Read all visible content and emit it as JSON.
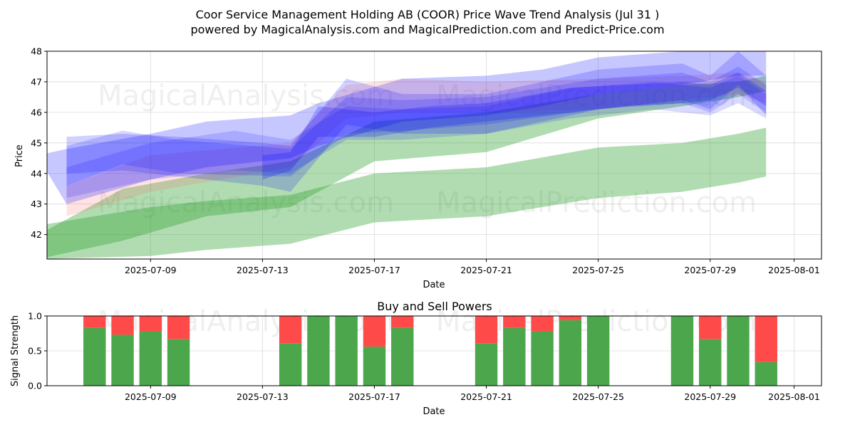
{
  "chart_data": [
    {
      "type": "area",
      "title": "Coor Service Management Holding AB (COOR) Price Wave Trend Analysis (Jul 31 )",
      "subtitle": "powered by MagicalAnalysis.com and MagicalPrediction.com and Predict-Price.com",
      "xlabel": "Date",
      "ylabel": "Price",
      "xlim": [
        "2025-07-05",
        "2025-08-01"
      ],
      "ylim": [
        41.2,
        48
      ],
      "x_ticks": [
        "2025-07-09",
        "2025-07-13",
        "2025-07-17",
        "2025-07-21",
        "2025-07-25",
        "2025-07-29",
        "2025-08-01"
      ],
      "y_ticks": [
        42,
        43,
        44,
        45,
        46,
        47,
        48
      ],
      "grid": true,
      "series": [
        {
          "name": "green-band-low",
          "color": "#2ca02c",
          "opacity": 0.37,
          "x": [
            "2025-07-05",
            "2025-07-09",
            "2025-07-11",
            "2025-07-14",
            "2025-07-17",
            "2025-07-19",
            "2025-07-21",
            "2025-07-25",
            "2025-07-28",
            "2025-07-30",
            "2025-07-31"
          ],
          "upper": [
            42.3,
            42.9,
            43.1,
            43.3,
            44.0,
            44.1,
            44.2,
            44.85,
            45.0,
            45.3,
            45.5
          ],
          "lower": [
            41.2,
            41.3,
            41.5,
            41.7,
            42.4,
            42.5,
            42.6,
            43.2,
            43.4,
            43.7,
            43.9
          ]
        },
        {
          "name": "green-band-high",
          "color": "#2ca02c",
          "opacity": 0.37,
          "x": [
            "2025-07-05",
            "2025-07-08",
            "2025-07-11",
            "2025-07-14",
            "2025-07-17",
            "2025-07-21",
            "2025-07-25",
            "2025-07-28",
            "2025-07-30",
            "2025-07-31"
          ],
          "upper": [
            42.0,
            43.5,
            44.0,
            44.4,
            45.7,
            46.0,
            46.6,
            46.9,
            47.0,
            47.2
          ],
          "lower": [
            41.2,
            41.8,
            42.6,
            42.9,
            44.4,
            44.7,
            45.8,
            46.2,
            46.5,
            46.7
          ]
        },
        {
          "name": "red-wave",
          "color": "#ff6666",
          "opacity": 0.18,
          "x": [
            "2025-07-06",
            "2025-07-09",
            "2025-07-14",
            "2025-07-16",
            "2025-07-18",
            "2025-07-21",
            "2025-07-25",
            "2025-07-28",
            "2025-07-30",
            "2025-07-31"
          ],
          "upper": [
            43.6,
            44.6,
            45.0,
            46.9,
            47.1,
            47.0,
            47.1,
            47.2,
            47.3,
            47.0
          ],
          "lower": [
            42.6,
            43.4,
            44.2,
            45.8,
            46.0,
            46.0,
            46.1,
            46.4,
            46.6,
            46.3
          ]
        },
        {
          "name": "blue-wave-1",
          "color": "#0000ff",
          "opacity": 0.22,
          "x": [
            "2025-07-05",
            "2025-07-06",
            "2025-07-09",
            "2025-07-11",
            "2025-07-14",
            "2025-07-15",
            "2025-07-18",
            "2025-07-21",
            "2025-07-23",
            "2025-07-25",
            "2025-07-28",
            "2025-07-30",
            "2025-07-31"
          ],
          "upper": [
            44.6,
            44.8,
            45.3,
            45.7,
            45.9,
            46.3,
            47.1,
            47.2,
            47.4,
            47.8,
            48.0,
            48.1,
            48.1
          ],
          "lower": [
            44.5,
            43.0,
            43.8,
            44.2,
            44.5,
            44.9,
            45.7,
            45.9,
            46.2,
            46.6,
            46.9,
            47.2,
            47.2
          ]
        },
        {
          "name": "blue-wave-2",
          "color": "#0000ff",
          "opacity": 0.18,
          "x": [
            "2025-07-06",
            "2025-07-08",
            "2025-07-10",
            "2025-07-13",
            "2025-07-14",
            "2025-07-16",
            "2025-07-18",
            "2025-07-21",
            "2025-07-25",
            "2025-07-28",
            "2025-07-29",
            "2025-07-30",
            "2025-07-31"
          ],
          "upper": [
            45.2,
            45.3,
            45.2,
            45.0,
            44.9,
            47.1,
            46.6,
            46.6,
            47.4,
            47.6,
            47.2,
            48.0,
            47.2
          ],
          "lower": [
            44.0,
            44.1,
            43.9,
            43.6,
            43.4,
            45.6,
            45.3,
            45.3,
            46.1,
            46.4,
            46.1,
            46.9,
            45.9
          ]
        },
        {
          "name": "blue-wave-3",
          "color": "#0000ff",
          "opacity": 0.16,
          "x": [
            "2025-07-06",
            "2025-07-08",
            "2025-07-10",
            "2025-07-14",
            "2025-07-16",
            "2025-07-18",
            "2025-07-21",
            "2025-07-25",
            "2025-07-28",
            "2025-07-29",
            "2025-07-30",
            "2025-07-31"
          ],
          "upper": [
            44.9,
            45.4,
            45.1,
            44.8,
            46.5,
            46.4,
            46.5,
            47.1,
            47.3,
            47.0,
            47.5,
            46.9
          ],
          "lower": [
            43.6,
            44.3,
            44.0,
            43.9,
            45.3,
            45.4,
            45.6,
            46.1,
            46.3,
            46.0,
            46.6,
            46.0
          ]
        },
        {
          "name": "blue-wave-4",
          "color": "#0000ff",
          "opacity": 0.15,
          "x": [
            "2025-07-06",
            "2025-07-09",
            "2025-07-12",
            "2025-07-14",
            "2025-07-16",
            "2025-07-18",
            "2025-07-21",
            "2025-07-24",
            "2025-07-27",
            "2025-07-29",
            "2025-07-30",
            "2025-07-31"
          ],
          "upper": [
            44.2,
            45.0,
            45.4,
            45.1,
            46.2,
            46.1,
            46.2,
            46.8,
            47.0,
            46.8,
            47.2,
            46.6
          ],
          "lower": [
            43.2,
            43.8,
            44.1,
            44.0,
            45.1,
            45.1,
            45.3,
            45.8,
            46.1,
            45.9,
            46.3,
            45.8
          ]
        },
        {
          "name": "blue-wave-5",
          "color": "#0000ff",
          "opacity": 0.22,
          "x": [
            "2025-07-13",
            "2025-07-14",
            "2025-07-15",
            "2025-07-17",
            "2025-07-19",
            "2025-07-21",
            "2025-07-24",
            "2025-07-26",
            "2025-07-28",
            "2025-07-29",
            "2025-07-30",
            "2025-07-31"
          ],
          "upper": [
            44.6,
            44.7,
            46.2,
            46.0,
            46.2,
            46.3,
            46.8,
            46.9,
            47.0,
            46.9,
            47.3,
            46.7
          ],
          "lower": [
            43.8,
            44.1,
            45.2,
            45.2,
            45.5,
            45.7,
            46.0,
            46.2,
            46.3,
            46.4,
            46.8,
            46.2
          ]
        }
      ]
    },
    {
      "type": "bar",
      "stacked": true,
      "title": "Buy and Sell Powers",
      "xlabel": "Date",
      "ylabel": "Signal Strength",
      "xlim": [
        "2025-07-05",
        "2025-08-01"
      ],
      "ylim": [
        0,
        1
      ],
      "x_ticks": [
        "2025-07-09",
        "2025-07-13",
        "2025-07-17",
        "2025-07-21",
        "2025-07-25",
        "2025-07-29",
        "2025-08-01"
      ],
      "y_ticks": [
        "0.0",
        "0.5",
        "1.0"
      ],
      "grid": true,
      "categories": [
        "2025-07-07",
        "2025-07-08",
        "2025-07-09",
        "2025-07-10",
        "2025-07-14",
        "2025-07-15",
        "2025-07-16",
        "2025-07-17",
        "2025-07-18",
        "2025-07-21",
        "2025-07-22",
        "2025-07-23",
        "2025-07-24",
        "2025-07-25",
        "2025-07-28",
        "2025-07-29",
        "2025-07-30",
        "2025-07-31"
      ],
      "series": [
        {
          "name": "Buy",
          "color": "#4ca64c",
          "values": [
            0.83,
            0.73,
            0.78,
            0.67,
            0.61,
            1.0,
            1.0,
            0.56,
            0.83,
            0.61,
            0.83,
            0.78,
            0.94,
            1.0,
            1.0,
            0.67,
            1.0,
            0.34
          ]
        },
        {
          "name": "Sell",
          "color": "#ff4a4a",
          "values": [
            0.17,
            0.27,
            0.22,
            0.33,
            0.39,
            0.0,
            0.0,
            0.44,
            0.17,
            0.39,
            0.17,
            0.22,
            0.06,
            0.0,
            0.0,
            0.33,
            0.0,
            0.66
          ]
        }
      ]
    }
  ],
  "watermarks": [
    "MagicalAnalysis.com",
    "MagicalPrediction.com"
  ]
}
